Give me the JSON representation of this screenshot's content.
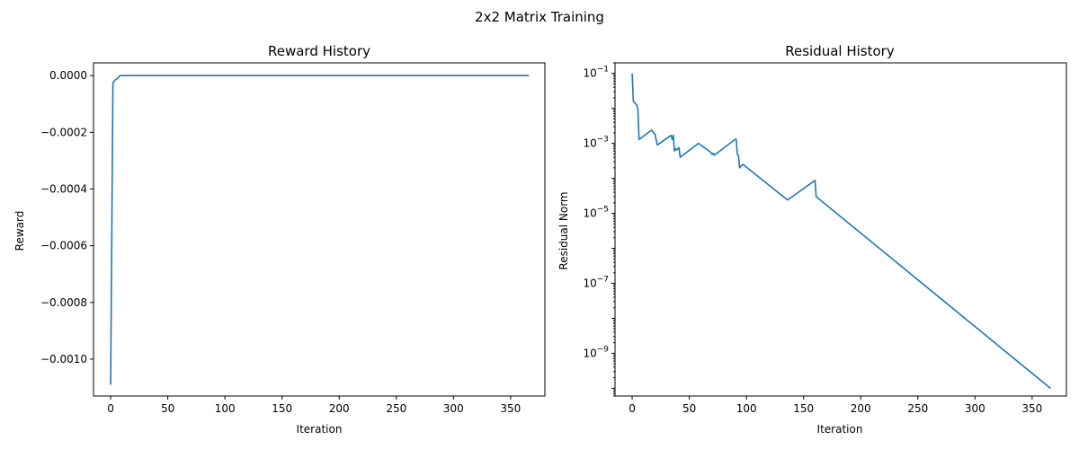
{
  "figure": {
    "suptitle": "2x2 Matrix Training"
  },
  "chart_data": [
    {
      "type": "line",
      "title": "Reward History",
      "xlabel": "Iteration",
      "ylabel": "Reward",
      "xlim": [
        -15,
        380
      ],
      "ylim": [
        -0.00113,
        4.5e-05
      ],
      "xticks": [
        0,
        50,
        100,
        150,
        200,
        250,
        300,
        350
      ],
      "xtick_labels": [
        "0",
        "50",
        "100",
        "150",
        "200",
        "250",
        "300",
        "350"
      ],
      "yticks": [
        0,
        -0.0002,
        -0.0004,
        -0.0006,
        -0.0008,
        -0.001
      ],
      "ytick_labels": [
        "0.0000",
        "−0.0002",
        "−0.0004",
        "−0.0006",
        "−0.0008",
        "−0.0010"
      ],
      "grid": false,
      "series": [
        {
          "color": "#1f77b4",
          "x": [
            0,
            2,
            4,
            6,
            8,
            20,
            40,
            100,
            200,
            300,
            366
          ],
          "y": [
            -0.00109,
            -2.5e-05,
            -1.5e-05,
            -1e-05,
            0,
            0,
            0,
            0,
            0,
            0,
            0
          ]
        }
      ]
    },
    {
      "type": "line",
      "title": "Residual History",
      "xlabel": "Iteration",
      "ylabel": "Residual Norm",
      "yscale": "log",
      "xlim": [
        -15,
        380
      ],
      "ylim": [
        6e-11,
        0.2
      ],
      "xticks": [
        0,
        50,
        100,
        150,
        200,
        250,
        300,
        350
      ],
      "xtick_labels": [
        "0",
        "50",
        "100",
        "150",
        "200",
        "250",
        "300",
        "350"
      ],
      "yticks": [
        0.1,
        0.001,
        1e-05,
        1e-07,
        1e-09
      ],
      "ytick_labels": [
        [
          "10",
          "−1"
        ],
        [
          "10",
          "−3"
        ],
        [
          "10",
          "−5"
        ],
        [
          "10",
          "−7"
        ],
        [
          "10",
          "−9"
        ]
      ],
      "grid": false,
      "series": [
        {
          "color": "#1f77b4",
          "x": [
            0,
            1,
            4,
            5,
            6,
            17,
            20,
            22,
            34,
            35,
            36,
            37,
            38,
            39,
            41,
            42,
            58,
            69,
            70,
            71,
            72,
            90,
            91,
            92,
            93,
            94,
            95,
            97,
            136,
            160,
            161,
            366
          ],
          "y": [
            0.1,
            0.016,
            0.0125,
            0.0095,
            0.0013,
            0.0024,
            0.0018,
            0.0009,
            0.0017,
            0.0013,
            0.0017,
            0.0006,
            0.0007,
            0.00065,
            0.00075,
            0.0004,
            0.001,
            0.00055,
            0.00048,
            0.00052,
            0.00046,
            0.0013,
            0.0013,
            0.0005,
            0.00045,
            0.0002,
            0.00022,
            0.00025,
            2.4e-05,
            8.7e-05,
            3e-05,
            1e-10
          ]
        }
      ]
    }
  ]
}
